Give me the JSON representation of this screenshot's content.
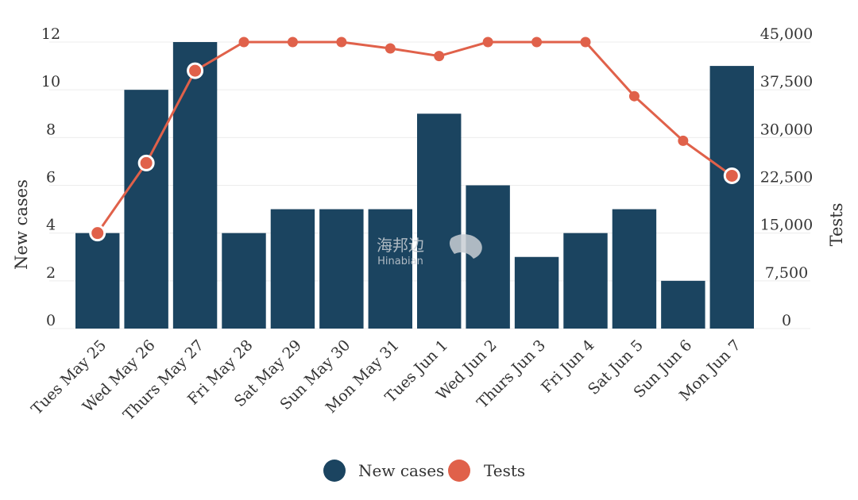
{
  "chart_data": {
    "type": "bar",
    "categories": [
      "Tues May 25",
      "Wed May 26",
      "Thurs May 27",
      "Fri May 28",
      "Sat May 29",
      "Sun May 30",
      "Mon May 31",
      "Tues Jun 1",
      "Wed Jun 2",
      "Thurs Jun 3",
      "Fri Jun 4",
      "Sat Jun 5",
      "Sun Jun 6",
      "Mon Jun 7"
    ],
    "series": [
      {
        "name": "New cases",
        "type": "bar",
        "axis": "left",
        "color": "#1b4460",
        "values": [
          4,
          10,
          12,
          4,
          5,
          5,
          5,
          9,
          6,
          3,
          4,
          5,
          2,
          11
        ]
      },
      {
        "name": "Tests",
        "type": "line",
        "axis": "right",
        "color": "#e0614a",
        "values": [
          15000,
          26000,
          40500,
          45000,
          45000,
          45000,
          44000,
          42800,
          45000,
          45000,
          45000,
          36500,
          29500,
          24000
        ],
        "highlighted_points": [
          0,
          1,
          2,
          13
        ]
      }
    ],
    "y_left": {
      "label": "New cases",
      "range": [
        0,
        12
      ],
      "ticks": [
        "0",
        "2",
        "4",
        "6",
        "8",
        "10",
        "12"
      ]
    },
    "y_right": {
      "label": "Tests",
      "range": [
        0,
        45000
      ],
      "ticks": [
        "0",
        "7,500",
        "15,000",
        "22,500",
        "30,000",
        "37,500",
        "45,000"
      ]
    },
    "grid": true,
    "legend": {
      "placement": "bottom-center",
      "items": [
        {
          "label": "New cases",
          "color": "#1b4460"
        },
        {
          "label": "Tests",
          "color": "#e0614a"
        }
      ]
    }
  },
  "watermark": {
    "text_cn": "海邦边",
    "text_en": "Hinabian"
  }
}
